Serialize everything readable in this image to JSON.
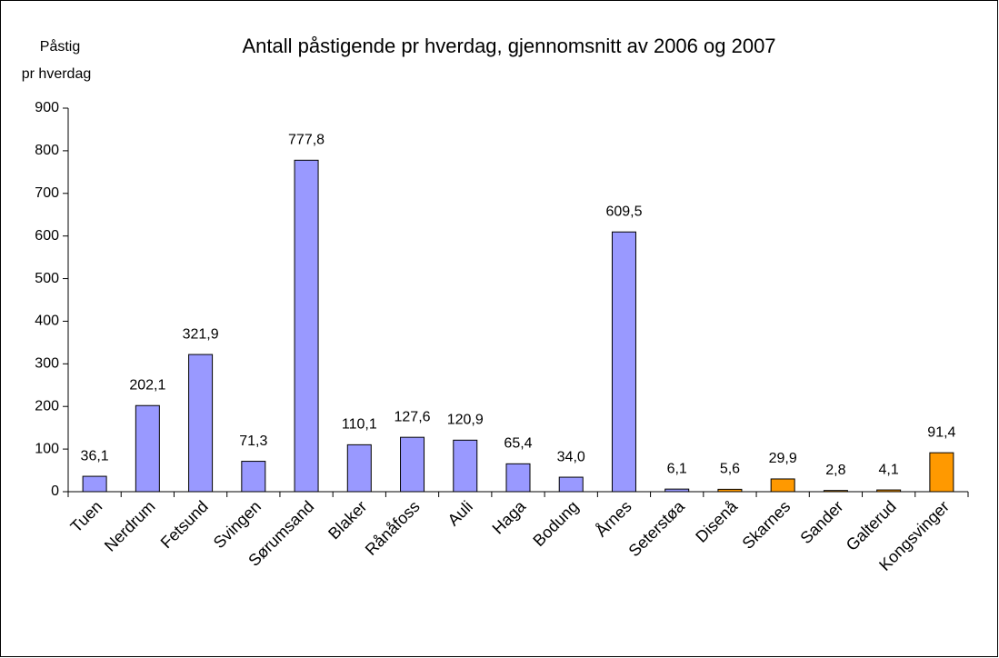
{
  "chart_data": {
    "type": "bar",
    "title": "Antall påstigende pr hverdag, gjennomsnitt av 2006 og 2007",
    "ylabel_lines": [
      "Påstig",
      "pr hverdag"
    ],
    "categories": [
      "Tuen",
      "Nerdrum",
      "Fetsund",
      "Svingen",
      "Sørumsand",
      "Blaker",
      "Rånåfoss",
      "Auli",
      "Haga",
      "Bodung",
      "Årnes",
      "Seterstøa",
      "Disenå",
      "Skarnes",
      "Sander",
      "Galterud",
      "Kongsvinger"
    ],
    "values": [
      36.1,
      202.1,
      321.9,
      71.3,
      777.8,
      110.1,
      127.6,
      120.9,
      65.4,
      34.0,
      609.5,
      6.1,
      5.6,
      29.9,
      2.8,
      4.1,
      91.4
    ],
    "value_labels": [
      "36,1",
      "202,1",
      "321,9",
      "71,3",
      "777,8",
      "110,1",
      "127,6",
      "120,9",
      "65,4",
      "34,0",
      "609,5",
      "6,1",
      "5,6",
      "29,9",
      "2,8",
      "4,1",
      "91,4"
    ],
    "colors": [
      "#9999ff",
      "#9999ff",
      "#9999ff",
      "#9999ff",
      "#9999ff",
      "#9999ff",
      "#9999ff",
      "#9999ff",
      "#9999ff",
      "#9999ff",
      "#9999ff",
      "#9999ff",
      "#ff9900",
      "#ff9900",
      "#ff9900",
      "#ff9900",
      "#ff9900"
    ],
    "ylim": [
      0,
      900
    ],
    "yticks": [
      0,
      100,
      200,
      300,
      400,
      500,
      600,
      700,
      800,
      900
    ]
  }
}
